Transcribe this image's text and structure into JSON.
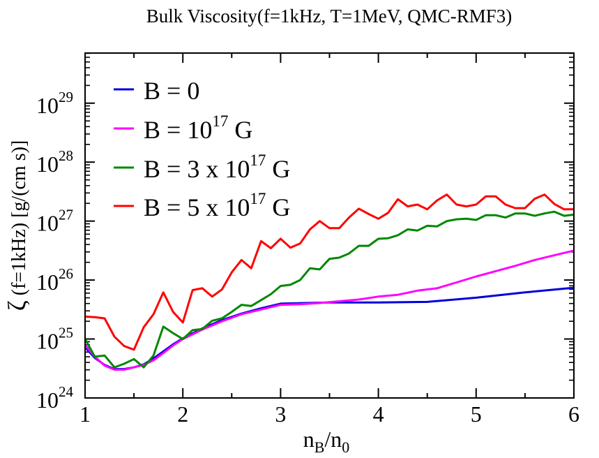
{
  "chart_data": {
    "type": "line",
    "title": "Bulk Viscosity(f=1kHz, T=1MeV, QMC-RMF3)",
    "xlabel": {
      "main": "n",
      "sub1": "B",
      "slash": "/n",
      "sub2": "0"
    },
    "ylabel": {
      "zeta": "ζ",
      "text": " (f=1kHz) [g/(cm s)]"
    },
    "xlim": [
      1,
      6
    ],
    "ylim_log10": [
      24,
      29.85
    ],
    "x_ticks": [
      {
        "v": 1,
        "label": "1"
      },
      {
        "v": 2,
        "label": "2"
      },
      {
        "v": 3,
        "label": "3"
      },
      {
        "v": 4,
        "label": "4"
      },
      {
        "v": 5,
        "label": "5"
      },
      {
        "v": 6,
        "label": "6"
      }
    ],
    "y_ticks": [
      {
        "exp": 24,
        "base": "10",
        "sup": "24"
      },
      {
        "exp": 25,
        "base": "10",
        "sup": "25"
      },
      {
        "exp": 26,
        "base": "10",
        "sup": "26"
      },
      {
        "exp": 27,
        "base": "10",
        "sup": "27"
      },
      {
        "exp": 28,
        "base": "10",
        "sup": "28"
      },
      {
        "exp": 29,
        "base": "10",
        "sup": "29"
      }
    ],
    "legend_position": "top-left",
    "series": [
      {
        "name": "B = 0",
        "legend": {
          "pre": "B = 0",
          "sup": "",
          "post": ""
        },
        "color": "#0000dd",
        "x": [
          1.0,
          1.1,
          1.2,
          1.3,
          1.4,
          1.5,
          1.6,
          1.7,
          1.8,
          1.9,
          2.0,
          2.2,
          2.4,
          2.6,
          2.8,
          3.0,
          3.5,
          4.0,
          4.5,
          5.0,
          5.5,
          6.0
        ],
        "log10y": [
          24.86,
          24.68,
          24.56,
          24.49,
          24.49,
          24.52,
          24.57,
          24.67,
          24.79,
          24.91,
          25.01,
          25.18,
          25.32,
          25.43,
          25.52,
          25.6,
          25.62,
          25.62,
          25.63,
          25.7,
          25.79,
          25.87
        ]
      },
      {
        "name": "B = 10^17 G",
        "legend": {
          "pre": "B = 10",
          "sup": "17",
          "post": " G"
        },
        "color": "#ff00ff",
        "x": [
          1.0,
          1.1,
          1.2,
          1.3,
          1.4,
          1.5,
          1.6,
          1.7,
          1.8,
          1.9,
          2.0,
          2.2,
          2.4,
          2.6,
          2.8,
          3.0,
          3.2,
          3.4,
          3.6,
          3.8,
          4.0,
          4.2,
          4.4,
          4.6,
          4.8,
          5.0,
          5.2,
          5.4,
          5.6,
          5.8,
          6.0
        ],
        "log10y": [
          24.9,
          24.7,
          24.55,
          24.48,
          24.48,
          24.52,
          24.56,
          24.64,
          24.76,
          24.89,
          25.0,
          25.16,
          25.3,
          25.42,
          25.5,
          25.58,
          25.59,
          25.61,
          25.64,
          25.67,
          25.72,
          25.75,
          25.82,
          25.86,
          25.96,
          26.06,
          26.15,
          26.24,
          26.34,
          26.42,
          26.5
        ]
      },
      {
        "name": "B = 3 x 10^17 G",
        "legend": {
          "pre": "B = 3 x 10",
          "sup": "17",
          "post": " G"
        },
        "color": "#008800",
        "x": [
          1.0,
          1.1,
          1.2,
          1.3,
          1.4,
          1.5,
          1.6,
          1.7,
          1.8,
          1.9,
          2.0,
          2.1,
          2.2,
          2.3,
          2.4,
          2.5,
          2.6,
          2.7,
          2.8,
          2.9,
          3.0,
          3.1,
          3.2,
          3.3,
          3.4,
          3.5,
          3.6,
          3.7,
          3.8,
          3.9,
          4.0,
          4.1,
          4.2,
          4.3,
          4.4,
          4.5,
          4.6,
          4.7,
          4.8,
          4.9,
          5.0,
          5.1,
          5.2,
          5.3,
          5.4,
          5.5,
          5.6,
          5.7,
          5.8,
          5.9,
          6.0
        ],
        "log10y": [
          25.0,
          24.7,
          24.72,
          24.52,
          24.58,
          24.66,
          24.52,
          24.72,
          25.21,
          25.1,
          25.0,
          25.15,
          25.17,
          25.31,
          25.35,
          25.46,
          25.58,
          25.56,
          25.66,
          25.76,
          25.9,
          25.92,
          26.0,
          26.2,
          26.18,
          26.36,
          26.38,
          26.45,
          26.58,
          26.58,
          26.7,
          26.71,
          26.76,
          26.86,
          26.84,
          26.92,
          26.91,
          27.0,
          27.03,
          27.04,
          27.02,
          27.1,
          27.1,
          27.06,
          27.13,
          27.13,
          27.09,
          27.13,
          27.16,
          27.09,
          27.11
        ]
      },
      {
        "name": "B = 5 x 10^17 G",
        "legend": {
          "pre": "B = 5 x 10",
          "sup": "17",
          "post": " G"
        },
        "color": "#ff0000",
        "x": [
          1.0,
          1.1,
          1.2,
          1.3,
          1.4,
          1.5,
          1.6,
          1.7,
          1.8,
          1.9,
          2.0,
          2.1,
          2.2,
          2.3,
          2.4,
          2.5,
          2.6,
          2.7,
          2.8,
          2.9,
          3.0,
          3.1,
          3.2,
          3.3,
          3.4,
          3.5,
          3.6,
          3.7,
          3.8,
          3.9,
          4.0,
          4.1,
          4.2,
          4.3,
          4.4,
          4.5,
          4.6,
          4.7,
          4.8,
          4.9,
          5.0,
          5.1,
          5.2,
          5.3,
          5.4,
          5.5,
          5.6,
          5.7,
          5.8,
          5.9,
          6.0
        ],
        "log10y": [
          25.38,
          25.37,
          25.35,
          25.04,
          24.88,
          24.82,
          25.2,
          25.42,
          25.79,
          25.46,
          25.28,
          25.83,
          25.86,
          25.72,
          25.84,
          26.13,
          26.34,
          26.2,
          26.66,
          26.54,
          26.7,
          26.55,
          26.62,
          26.86,
          27.0,
          26.88,
          26.88,
          27.06,
          27.21,
          27.12,
          27.04,
          27.14,
          27.37,
          27.25,
          27.28,
          27.2,
          27.35,
          27.45,
          27.28,
          27.25,
          27.28,
          27.42,
          27.42,
          27.28,
          27.22,
          27.22,
          27.38,
          27.45,
          27.29,
          27.2,
          27.2
        ]
      }
    ]
  }
}
